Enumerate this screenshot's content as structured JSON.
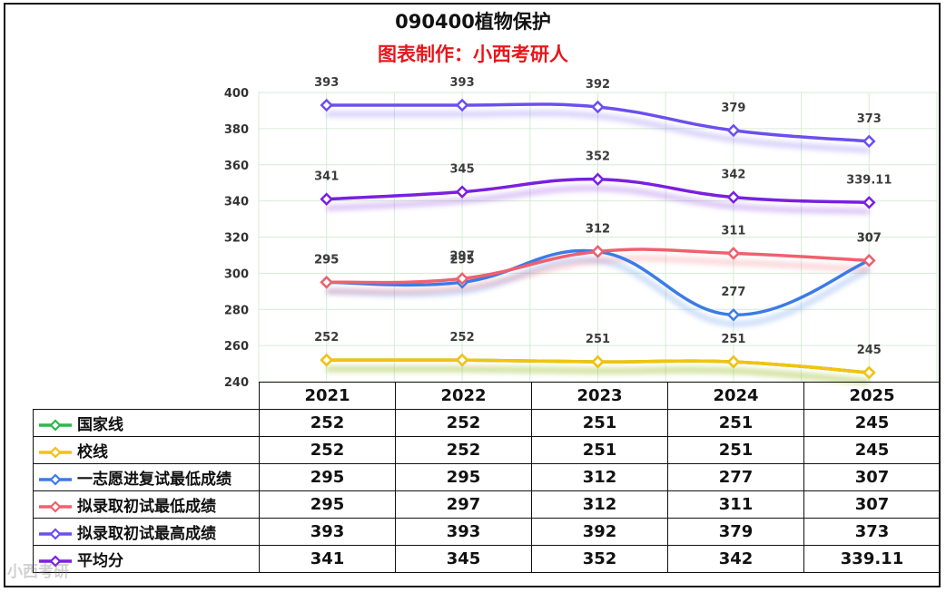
{
  "header": {
    "title": "090400植物保护",
    "subtitle": "图表制作：小西考研人"
  },
  "watermark": "小西考研",
  "chart_data": {
    "type": "line",
    "title": "090400植物保护",
    "subtitle": "图表制作：小西考研人",
    "categories": [
      "2021",
      "2022",
      "2023",
      "2024",
      "2025"
    ],
    "ylim": [
      240,
      400
    ],
    "yticks": [
      240,
      260,
      280,
      300,
      320,
      340,
      360,
      380,
      400
    ],
    "grid": true,
    "legend": "data-table-below",
    "series": [
      {
        "name": "国家线",
        "color": "#2db84d",
        "values": [
          252,
          252,
          251,
          251,
          245
        ],
        "labels": [
          "252",
          "252",
          "251",
          "251",
          "245"
        ],
        "show_labels": false
      },
      {
        "name": "校线",
        "color": "#f5c20d",
        "values": [
          252,
          252,
          251,
          251,
          245
        ],
        "labels": [
          "252",
          "252",
          "251",
          "251",
          "245"
        ],
        "show_labels": true
      },
      {
        "name": "一志愿进复试最低成绩",
        "color": "#3b7be8",
        "values": [
          295,
          295,
          312,
          277,
          307
        ],
        "labels": [
          "295",
          "295",
          "312",
          "277",
          "307"
        ],
        "show_labels": true
      },
      {
        "name": "拟录取初试最低成绩",
        "color": "#f0606e",
        "values": [
          295,
          297,
          312,
          311,
          307
        ],
        "labels": [
          "295",
          "297",
          "312",
          "311",
          "307"
        ],
        "show_labels": true
      },
      {
        "name": "拟录取初试最高成绩",
        "color": "#6b4ff0",
        "values": [
          393,
          393,
          392,
          379,
          373
        ],
        "labels": [
          "393",
          "393",
          "392",
          "379",
          "373"
        ],
        "show_labels": true
      },
      {
        "name": "平均分",
        "color": "#7a1fe0",
        "values": [
          341,
          345,
          352,
          342,
          339.11
        ],
        "labels": [
          "341",
          "345",
          "352",
          "342",
          "339.11"
        ],
        "show_labels": true
      }
    ]
  }
}
